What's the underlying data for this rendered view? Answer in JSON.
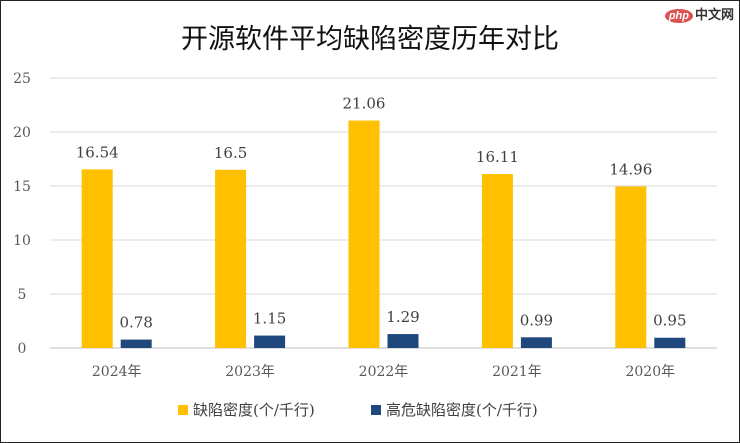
{
  "watermark": {
    "logo": "php",
    "text": "中文网"
  },
  "chart_data": {
    "type": "bar",
    "title": "开源软件平均缺陷密度历年对比",
    "categories": [
      "2024年",
      "2023年",
      "2022年",
      "2021年",
      "2020年"
    ],
    "series": [
      {
        "name": "缺陷密度(个/千行)",
        "values": [
          16.54,
          16.5,
          21.06,
          16.11,
          14.96
        ],
        "color": "#FFC000"
      },
      {
        "name": "高危缺陷密度(个/千行)",
        "values": [
          0.78,
          1.15,
          1.29,
          0.99,
          0.95
        ],
        "color": "#1F497D"
      }
    ],
    "ylim": [
      0,
      25
    ],
    "yticks": [
      0,
      5,
      10,
      15,
      20,
      25
    ],
    "grid": true,
    "legend": "bottom",
    "data_labels": true
  }
}
